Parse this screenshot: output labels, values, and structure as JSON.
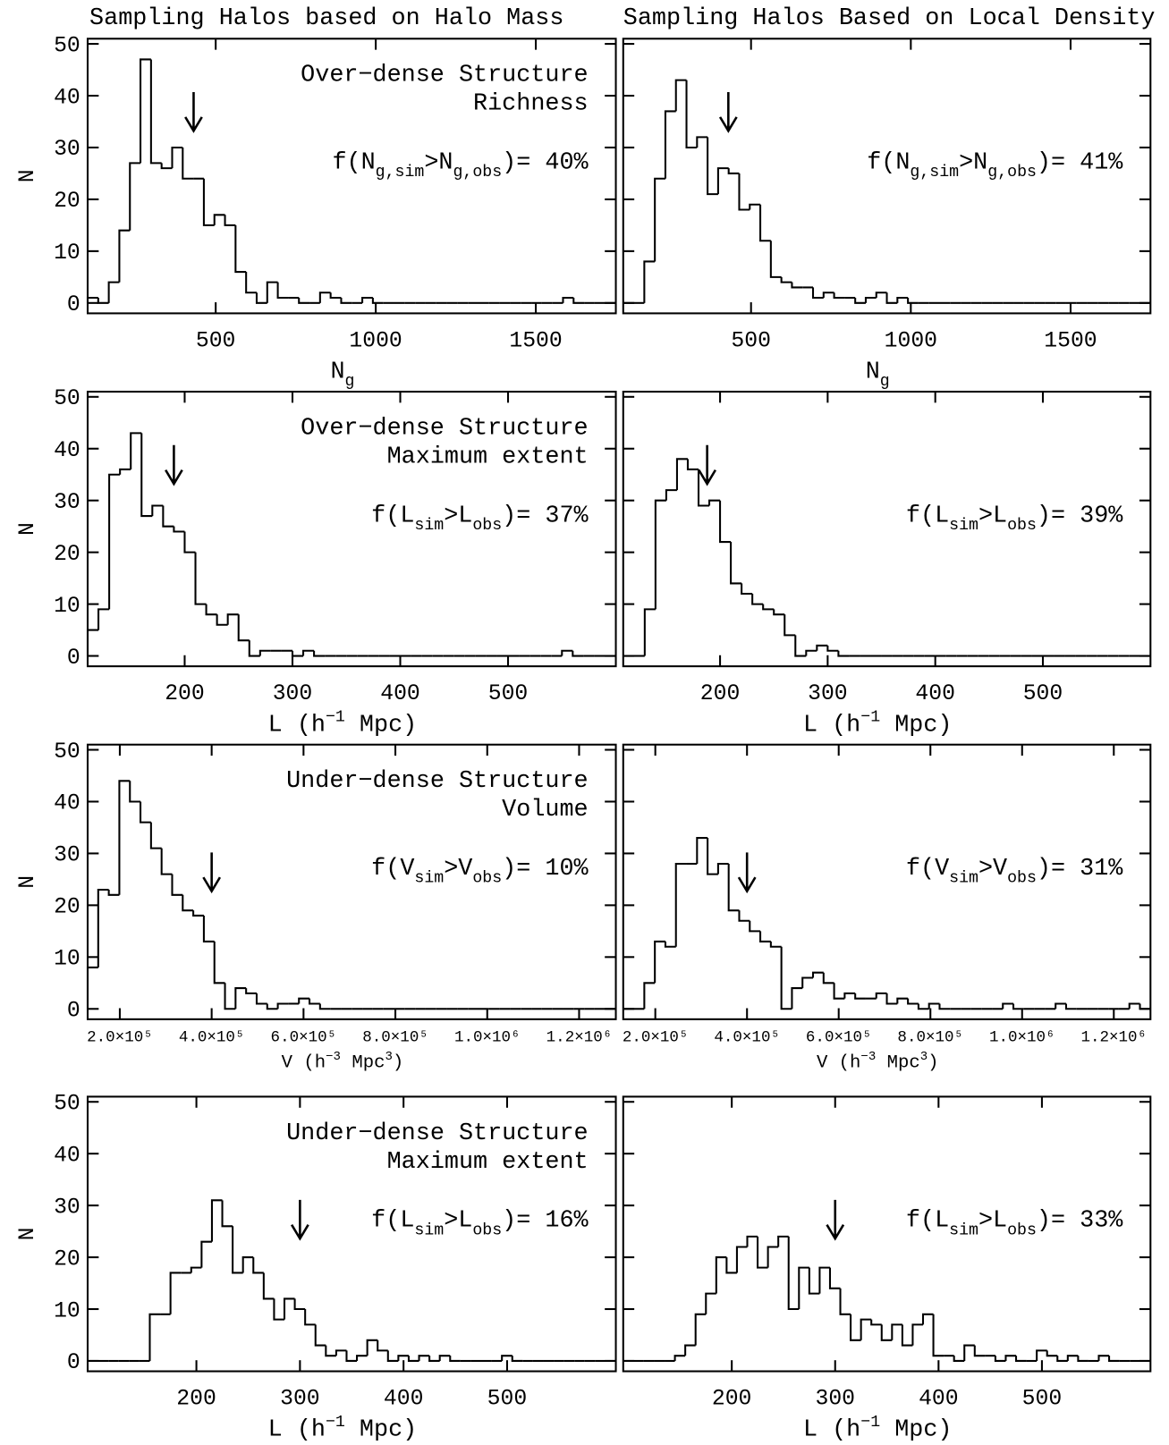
{
  "column_titles": [
    "Sampling Halos based on Halo Mass",
    "Sampling Halos Based on Local Density"
  ],
  "chart_data": [
    {
      "type": "histogram",
      "color": "#000000",
      "annotation": [
        "Over−dense Structure",
        "Richness"
      ],
      "stat": [
        {
          "text": "f(N"
        },
        {
          "text": "g,sim",
          "pos": "sub"
        },
        {
          "text": ">N"
        },
        {
          "text": "g,obs",
          "pos": "sub"
        },
        {
          "text": ")= 40%"
        }
      ],
      "xlabel": [
        {
          "text": "N"
        },
        {
          "text": "g",
          "pos": "sub"
        }
      ],
      "ylabel": "N",
      "xlim": [
        100,
        1750
      ],
      "ylim": [
        -2,
        51
      ],
      "xticks": [
        500,
        1000,
        1500
      ],
      "yticks": [
        0,
        10,
        20,
        30,
        40,
        50
      ],
      "observed": 431,
      "bins": [
        100,
        133,
        166,
        199,
        232,
        265,
        298,
        331,
        364,
        397,
        430,
        463,
        496,
        529,
        562,
        595,
        628,
        661,
        694,
        727,
        760,
        793,
        826,
        859,
        892,
        925,
        958,
        991,
        1024,
        1057,
        1090,
        1123,
        1156,
        1189,
        1222,
        1255,
        1288,
        1321,
        1354,
        1387,
        1420,
        1453,
        1486,
        1519,
        1552,
        1585,
        1618,
        1651,
        1684,
        1717,
        1750
      ],
      "counts": [
        1,
        0,
        4,
        14,
        27,
        47,
        27,
        26,
        30,
        24,
        24,
        15,
        17,
        15,
        6,
        2,
        0,
        4,
        1,
        1,
        0,
        0,
        2,
        1,
        0,
        0,
        1,
        0,
        0,
        0,
        0,
        0,
        0,
        0,
        0,
        0,
        0,
        0,
        0,
        0,
        0,
        0,
        0,
        0,
        0,
        1,
        0,
        0,
        0,
        0
      ]
    },
    {
      "type": "histogram",
      "color": "#000000",
      "stat": [
        {
          "text": "f(N"
        },
        {
          "text": "g,sim",
          "pos": "sub"
        },
        {
          "text": ">N"
        },
        {
          "text": "g,obs",
          "pos": "sub"
        },
        {
          "text": ")= 41%"
        }
      ],
      "xlabel": [
        {
          "text": "N"
        },
        {
          "text": "g",
          "pos": "sub"
        }
      ],
      "xlim": [
        100,
        1750
      ],
      "ylim": [
        -2,
        51
      ],
      "xticks": [
        500,
        1000,
        1500
      ],
      "yticks": [
        0,
        10,
        20,
        30,
        40,
        50
      ],
      "observed": 429,
      "bins": [
        100,
        133,
        166,
        199,
        232,
        265,
        298,
        331,
        364,
        397,
        430,
        463,
        496,
        529,
        562,
        595,
        628,
        661,
        694,
        727,
        760,
        793,
        826,
        859,
        892,
        925,
        958,
        991,
        1024,
        1057,
        1090,
        1123,
        1156,
        1189,
        1222,
        1255,
        1288,
        1321,
        1354,
        1387,
        1420,
        1453,
        1486,
        1519,
        1552,
        1585,
        1618,
        1651,
        1684,
        1717,
        1750
      ],
      "counts": [
        0,
        0,
        8,
        24,
        37,
        43,
        30,
        32,
        21,
        26,
        25,
        18,
        19,
        12,
        5,
        4,
        3,
        3,
        1,
        2,
        1,
        1,
        0,
        1,
        2,
        0,
        1,
        0,
        0,
        0,
        0,
        0,
        0,
        0,
        0,
        0,
        0,
        0,
        0,
        0,
        0,
        0,
        0,
        0,
        0,
        0,
        0,
        0,
        0,
        0
      ]
    },
    {
      "type": "histogram",
      "color": "#000000",
      "annotation": [
        "Over−dense Structure",
        "Maximum extent"
      ],
      "stat": [
        {
          "text": "f(L"
        },
        {
          "text": "sim",
          "pos": "sub"
        },
        {
          "text": ">L"
        },
        {
          "text": "obs",
          "pos": "sub"
        },
        {
          "text": ")= 37%"
        }
      ],
      "xlabel": [
        {
          "text": "L (h"
        },
        {
          "text": "−1",
          "pos": "sup"
        },
        {
          "text": " Mpc)"
        }
      ],
      "ylabel": "N",
      "xlim": [
        110,
        600
      ],
      "ylim": [
        -2,
        51
      ],
      "xticks": [
        200,
        300,
        400,
        500
      ],
      "yticks": [
        0,
        10,
        20,
        30,
        40,
        50
      ],
      "observed": 190,
      "bins": [
        110,
        120,
        130,
        140,
        150,
        160,
        170,
        180,
        190,
        200,
        210,
        220,
        230,
        240,
        250,
        260,
        270,
        280,
        290,
        300,
        310,
        320,
        330,
        340,
        350,
        360,
        370,
        380,
        390,
        400,
        410,
        420,
        430,
        440,
        450,
        460,
        470,
        480,
        490,
        500,
        510,
        520,
        530,
        540,
        550,
        560,
        570,
        580,
        590,
        600
      ],
      "counts": [
        5,
        9,
        35,
        36,
        43,
        27,
        29,
        25,
        24,
        20,
        10,
        8,
        6,
        8,
        3,
        0,
        1,
        1,
        1,
        0,
        1,
        0,
        0,
        0,
        0,
        0,
        0,
        0,
        0,
        0,
        0,
        0,
        0,
        0,
        0,
        0,
        0,
        0,
        0,
        0,
        0,
        0,
        0,
        0,
        1,
        0,
        0,
        0,
        0
      ]
    },
    {
      "type": "histogram",
      "color": "#000000",
      "stat": [
        {
          "text": "f(L"
        },
        {
          "text": "sim",
          "pos": "sub"
        },
        {
          "text": ">L"
        },
        {
          "text": "obs",
          "pos": "sub"
        },
        {
          "text": ")= 39%"
        }
      ],
      "xlabel": [
        {
          "text": "L (h"
        },
        {
          "text": "−1",
          "pos": "sup"
        },
        {
          "text": " Mpc)"
        }
      ],
      "xlim": [
        110,
        600
      ],
      "ylim": [
        -2,
        51
      ],
      "xticks": [
        200,
        300,
        400,
        500
      ],
      "yticks": [
        0,
        10,
        20,
        30,
        40,
        50
      ],
      "observed": 188,
      "bins": [
        110,
        120,
        130,
        140,
        150,
        160,
        170,
        180,
        190,
        200,
        210,
        220,
        230,
        240,
        250,
        260,
        270,
        280,
        290,
        300,
        310,
        320,
        330,
        340,
        350,
        360,
        370,
        380,
        390,
        400,
        410,
        420,
        430,
        440,
        450,
        460,
        470,
        480,
        490,
        500,
        510,
        520,
        530,
        540,
        550,
        560,
        570,
        580,
        590,
        600
      ],
      "counts": [
        0,
        0,
        9,
        30,
        32,
        38,
        36,
        29,
        30,
        22,
        14,
        12,
        10,
        9,
        8,
        4,
        0,
        1,
        2,
        1,
        0,
        0,
        0,
        0,
        0,
        0,
        0,
        0,
        0,
        0,
        0,
        0,
        0,
        0,
        0,
        0,
        0,
        0,
        0,
        0,
        0,
        0,
        0,
        0,
        0,
        0,
        0,
        0,
        0
      ]
    },
    {
      "type": "histogram",
      "color": "#000000",
      "annotation": [
        "Under−dense Structure",
        "Volume"
      ],
      "stat": [
        {
          "text": "f(V"
        },
        {
          "text": "sim",
          "pos": "sub"
        },
        {
          "text": ">V"
        },
        {
          "text": "obs",
          "pos": "sub"
        },
        {
          "text": ")= 10%"
        }
      ],
      "xlabel": [
        {
          "text": "V (h"
        },
        {
          "text": "−3",
          "pos": "sup"
        },
        {
          "text": " Mpc"
        },
        {
          "text": "3",
          "pos": "sup"
        },
        {
          "text": ")"
        }
      ],
      "ylabel": "N",
      "xlim": [
        130000,
        1280000
      ],
      "ylim": [
        -2,
        51
      ],
      "xticks": [
        {
          "value": 200000,
          "label": "2.0×10⁵"
        },
        {
          "value": 400000,
          "label": "4.0×10⁵"
        },
        {
          "value": 600000,
          "label": "6.0×10⁵"
        },
        {
          "value": 800000,
          "label": "8.0×10⁵"
        },
        {
          "value": 1000000,
          "label": "1.0×10⁶"
        },
        {
          "value": 1200000,
          "label": "1.2×10⁶"
        }
      ],
      "yticks": [
        0,
        10,
        20,
        30,
        40,
        50
      ],
      "observed": 400000,
      "bins": [
        130000,
        153000,
        176000,
        199000,
        222000,
        245000,
        268000,
        291000,
        314000,
        337000,
        360000,
        383000,
        406000,
        429000,
        452000,
        475000,
        498000,
        521000,
        544000,
        567000,
        590000,
        613000,
        636000,
        659000,
        682000,
        705000,
        728000,
        751000,
        774000,
        797000,
        820000,
        843000,
        866000,
        889000,
        912000,
        935000,
        958000,
        981000,
        1004000,
        1027000,
        1050000,
        1073000,
        1096000,
        1119000,
        1142000,
        1165000,
        1188000,
        1211000,
        1234000,
        1257000,
        1280000
      ],
      "counts": [
        8,
        23,
        22,
        44,
        40,
        36,
        31,
        26,
        22,
        19,
        18,
        13,
        5,
        0,
        4,
        3,
        1,
        0,
        1,
        1,
        2,
        1,
        0,
        0,
        0,
        0,
        0,
        0,
        0,
        0,
        0,
        0,
        0,
        0,
        0,
        0,
        0,
        0,
        0,
        0,
        0,
        0,
        0,
        0,
        0,
        0,
        0,
        0,
        0,
        0
      ]
    },
    {
      "type": "histogram",
      "color": "#000000",
      "stat": [
        {
          "text": "f(V"
        },
        {
          "text": "sim",
          "pos": "sub"
        },
        {
          "text": ">V"
        },
        {
          "text": "obs",
          "pos": "sub"
        },
        {
          "text": ")= 31%"
        }
      ],
      "xlabel": [
        {
          "text": "V (h"
        },
        {
          "text": "−3",
          "pos": "sup"
        },
        {
          "text": " Mpc"
        },
        {
          "text": "3",
          "pos": "sup"
        },
        {
          "text": ")"
        }
      ],
      "xlim": [
        130000,
        1280000
      ],
      "ylim": [
        -2,
        51
      ],
      "xticks": [
        {
          "value": 200000,
          "label": "2.0×10⁵"
        },
        {
          "value": 400000,
          "label": "4.0×10⁵"
        },
        {
          "value": 600000,
          "label": "6.0×10⁵"
        },
        {
          "value": 800000,
          "label": "8.0×10⁵"
        },
        {
          "value": 1000000,
          "label": "1.0×10⁶"
        },
        {
          "value": 1200000,
          "label": "1.2×10⁶"
        }
      ],
      "yticks": [
        0,
        10,
        20,
        30,
        40,
        50
      ],
      "observed": 400000,
      "bins": [
        130000,
        153000,
        176000,
        199000,
        222000,
        245000,
        268000,
        291000,
        314000,
        337000,
        360000,
        383000,
        406000,
        429000,
        452000,
        475000,
        498000,
        521000,
        544000,
        567000,
        590000,
        613000,
        636000,
        659000,
        682000,
        705000,
        728000,
        751000,
        774000,
        797000,
        820000,
        843000,
        866000,
        889000,
        912000,
        935000,
        958000,
        981000,
        1004000,
        1027000,
        1050000,
        1073000,
        1096000,
        1119000,
        1142000,
        1165000,
        1188000,
        1211000,
        1234000,
        1257000,
        1280000
      ],
      "counts": [
        0,
        0,
        5,
        13,
        12,
        28,
        28,
        33,
        26,
        28,
        19,
        17,
        15,
        13,
        12,
        0,
        4,
        6,
        7,
        5,
        2,
        3,
        2,
        2,
        3,
        1,
        2,
        1,
        0,
        1,
        0,
        0,
        0,
        0,
        0,
        0,
        1,
        0,
        0,
        0,
        0,
        1,
        0,
        0,
        0,
        0,
        0,
        0,
        1,
        0
      ]
    },
    {
      "type": "histogram",
      "color": "#000000",
      "annotation": [
        "Under−dense Structure",
        "Maximum extent"
      ],
      "stat": [
        {
          "text": "f(L"
        },
        {
          "text": "sim",
          "pos": "sub"
        },
        {
          "text": ">L"
        },
        {
          "text": "obs",
          "pos": "sub"
        },
        {
          "text": ")= 16%"
        }
      ],
      "xlabel": [
        {
          "text": "L (h"
        },
        {
          "text": "−1",
          "pos": "sup"
        },
        {
          "text": " Mpc)"
        }
      ],
      "ylabel": "N",
      "xlim": [
        95,
        605
      ],
      "ylim": [
        -2,
        51
      ],
      "xticks": [
        200,
        300,
        400,
        500
      ],
      "yticks": [
        0,
        10,
        20,
        30,
        40,
        50
      ],
      "observed": 300,
      "bins": [
        95,
        105,
        115,
        125,
        135,
        145,
        155,
        165,
        175,
        185,
        195,
        205,
        215,
        225,
        235,
        245,
        255,
        265,
        275,
        285,
        295,
        305,
        315,
        325,
        335,
        345,
        355,
        365,
        375,
        385,
        395,
        405,
        415,
        425,
        435,
        445,
        455,
        465,
        475,
        485,
        495,
        505,
        515,
        525,
        535,
        545,
        555,
        565,
        575,
        585,
        595,
        605
      ],
      "counts": [
        0,
        0,
        0,
        0,
        0,
        0,
        9,
        9,
        17,
        17,
        18,
        23,
        31,
        26,
        17,
        20,
        17,
        12,
        8,
        12,
        10,
        7,
        3,
        1,
        2,
        0,
        1,
        4,
        2,
        0,
        1,
        0,
        1,
        0,
        1,
        0,
        0,
        0,
        0,
        0,
        1,
        0,
        0,
        0,
        0,
        0,
        0,
        0,
        0,
        0,
        0
      ]
    },
    {
      "type": "histogram",
      "color": "#000000",
      "stat": [
        {
          "text": "f(L"
        },
        {
          "text": "sim",
          "pos": "sub"
        },
        {
          "text": ">L"
        },
        {
          "text": "obs",
          "pos": "sub"
        },
        {
          "text": ")= 33%"
        }
      ],
      "xlabel": [
        {
          "text": "L (h"
        },
        {
          "text": "−1",
          "pos": "sup"
        },
        {
          "text": " Mpc)"
        }
      ],
      "xlim": [
        95,
        605
      ],
      "ylim": [
        -2,
        51
      ],
      "xticks": [
        200,
        300,
        400,
        500
      ],
      "yticks": [
        0,
        10,
        20,
        30,
        40,
        50
      ],
      "observed": 300,
      "bins": [
        95,
        105,
        115,
        125,
        135,
        145,
        155,
        165,
        175,
        185,
        195,
        205,
        215,
        225,
        235,
        245,
        255,
        265,
        275,
        285,
        295,
        305,
        315,
        325,
        335,
        345,
        355,
        365,
        375,
        385,
        395,
        405,
        415,
        425,
        435,
        445,
        455,
        465,
        475,
        485,
        495,
        505,
        515,
        525,
        535,
        545,
        555,
        565,
        575,
        585,
        595,
        605
      ],
      "counts": [
        0,
        0,
        0,
        0,
        0,
        1,
        3,
        9,
        13,
        20,
        17,
        22,
        24,
        18,
        22,
        24,
        10,
        18,
        13,
        18,
        14,
        9,
        4,
        8,
        7,
        4,
        7,
        3,
        7,
        9,
        1,
        1,
        0,
        3,
        1,
        1,
        0,
        1,
        0,
        0,
        2,
        1,
        0,
        1,
        0,
        0,
        1,
        0,
        0,
        0,
        0
      ]
    }
  ]
}
